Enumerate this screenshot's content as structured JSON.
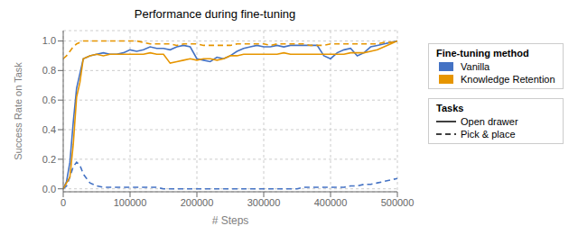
{
  "chart_data": {
    "type": "line",
    "title": "Performance during fine-tuning",
    "x_label": "# Steps",
    "y_label": "Success Rate on Task",
    "xlim": [
      0,
      500000
    ],
    "ylim": [
      -0.02,
      1.07
    ],
    "xticks": [
      0,
      100000,
      200000,
      300000,
      400000,
      500000
    ],
    "yticks": [
      {
        "value": 0.0,
        "label": "0.0"
      },
      0.2,
      0.4,
      0.6,
      0.8,
      {
        "value": 1.0,
        "label": "1.0"
      }
    ],
    "grid": true,
    "legend": "right",
    "legends": [
      {
        "title": "Fine-tuning method",
        "entries": [
          {
            "label": "Vanilla",
            "color": "#4472C4"
          },
          {
            "label": "Knowledge Retention",
            "color": "#E69500"
          }
        ]
      },
      {
        "title": "Tasks",
        "entries": [
          {
            "label": "Open drawer",
            "color": "#000000",
            "line_style": "solid"
          },
          {
            "label": "Pick & place",
            "color": "#000000",
            "line_style": "dashed"
          }
        ]
      }
    ],
    "x": [
      0,
      5000,
      10000,
      15000,
      20000,
      25000,
      30000,
      40000,
      50000,
      60000,
      70000,
      80000,
      90000,
      100000,
      110000,
      120000,
      130000,
      140000,
      150000,
      160000,
      170000,
      180000,
      190000,
      200000,
      210000,
      220000,
      230000,
      240000,
      250000,
      260000,
      270000,
      280000,
      290000,
      300000,
      310000,
      320000,
      330000,
      340000,
      350000,
      360000,
      370000,
      380000,
      390000,
      400000,
      410000,
      420000,
      430000,
      440000,
      450000,
      460000,
      470000,
      480000,
      490000,
      500000
    ],
    "series": [
      {
        "method": "Vanilla",
        "task": "Open drawer",
        "color": "#4472C4",
        "line_style": "solid",
        "values": [
          0.0,
          0.05,
          0.18,
          0.45,
          0.68,
          0.78,
          0.88,
          0.9,
          0.91,
          0.92,
          0.91,
          0.91,
          0.92,
          0.94,
          0.93,
          0.94,
          0.96,
          0.95,
          0.95,
          0.94,
          0.96,
          0.97,
          0.96,
          0.88,
          0.87,
          0.86,
          0.89,
          0.88,
          0.9,
          0.93,
          0.95,
          0.96,
          0.97,
          0.96,
          0.96,
          0.97,
          0.96,
          0.97,
          0.97,
          0.97,
          0.97,
          0.97,
          0.9,
          0.88,
          0.92,
          0.94,
          0.95,
          0.9,
          0.92,
          0.96,
          0.97,
          0.98,
          0.99,
          1.0
        ]
      },
      {
        "method": "Vanilla",
        "task": "Pick & place",
        "color": "#4472C4",
        "line_style": "dashed",
        "values": [
          0.0,
          0.02,
          0.08,
          0.15,
          0.18,
          0.16,
          0.1,
          0.04,
          0.02,
          0.01,
          0.01,
          0.01,
          0.01,
          0.01,
          0.01,
          0.01,
          0.01,
          0.01,
          0.0,
          0.0,
          0.0,
          0.0,
          0.0,
          0.0,
          0.0,
          0.0,
          0.0,
          0.0,
          0.0,
          0.0,
          0.0,
          0.0,
          0.0,
          0.0,
          0.0,
          0.0,
          0.0,
          0.0,
          0.0,
          0.01,
          0.01,
          0.01,
          0.01,
          0.01,
          0.01,
          0.01,
          0.02,
          0.02,
          0.03,
          0.03,
          0.04,
          0.05,
          0.06,
          0.07
        ]
      },
      {
        "method": "Knowledge Retention",
        "task": "Open drawer",
        "color": "#E69500",
        "line_style": "solid",
        "values": [
          0.0,
          0.04,
          0.08,
          0.3,
          0.62,
          0.72,
          0.88,
          0.9,
          0.91,
          0.9,
          0.91,
          0.91,
          0.91,
          0.91,
          0.91,
          0.91,
          0.92,
          0.91,
          0.91,
          0.85,
          0.86,
          0.87,
          0.88,
          0.87,
          0.88,
          0.88,
          0.87,
          0.88,
          0.9,
          0.9,
          0.91,
          0.91,
          0.91,
          0.91,
          0.91,
          0.91,
          0.92,
          0.91,
          0.91,
          0.91,
          0.91,
          0.91,
          0.91,
          0.91,
          0.91,
          0.91,
          0.92,
          0.92,
          0.92,
          0.93,
          0.94,
          0.96,
          0.98,
          1.0
        ]
      },
      {
        "method": "Knowledge Retention",
        "task": "Pick & place",
        "color": "#E69500",
        "line_style": "dashed",
        "values": [
          0.88,
          0.9,
          0.93,
          0.96,
          0.98,
          0.99,
          1.0,
          1.0,
          1.0,
          1.0,
          1.0,
          1.0,
          1.0,
          1.0,
          1.0,
          0.99,
          0.98,
          0.98,
          0.98,
          0.98,
          0.97,
          0.98,
          0.98,
          0.98,
          0.97,
          0.97,
          0.97,
          0.97,
          0.97,
          0.98,
          0.98,
          0.98,
          0.98,
          0.98,
          0.97,
          0.98,
          0.98,
          0.98,
          0.98,
          0.98,
          0.97,
          0.97,
          0.97,
          0.98,
          0.98,
          0.98,
          0.98,
          0.98,
          0.98,
          0.98,
          0.98,
          0.99,
          0.99,
          1.0
        ]
      }
    ]
  }
}
